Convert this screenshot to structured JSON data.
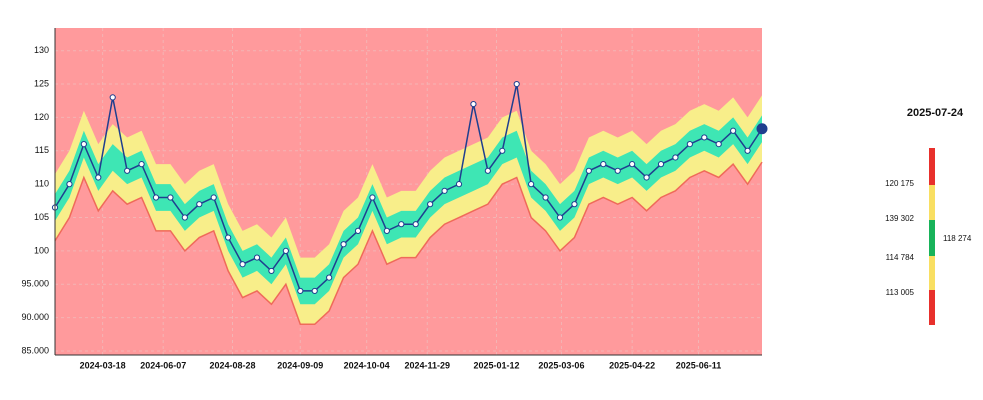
{
  "chart_data": {
    "type": "band-line",
    "values": [
      106.5,
      110,
      116,
      111,
      123,
      112,
      113,
      108,
      108,
      105,
      107,
      108,
      102,
      98,
      99,
      97,
      100,
      94,
      94,
      96,
      101,
      103,
      108,
      103,
      104,
      104,
      107,
      109,
      110,
      122,
      112,
      115,
      125,
      110,
      108,
      105,
      107,
      112,
      113,
      112,
      113,
      111,
      113,
      114,
      116,
      117,
      116,
      118,
      115,
      118.3
    ],
    "color": "#1f3f8f",
    "background": "#ff9a9c",
    "bands": [
      {
        "color": "#f8ee8a",
        "high": [
          111.5,
          115,
          121,
          116,
          119,
          117,
          118,
          113,
          113,
          110,
          112,
          113,
          107,
          103,
          104,
          102,
          105,
          99,
          99,
          101,
          106,
          108,
          113,
          108,
          109,
          109,
          112,
          114,
          115,
          116,
          117,
          120,
          121,
          115,
          113,
          110,
          112,
          117,
          118,
          117,
          118,
          116,
          118,
          119,
          121,
          122,
          121,
          123,
          120,
          123.3
        ],
        "low": [
          101.5,
          105,
          111,
          106,
          109,
          107,
          108,
          103,
          103,
          100,
          102,
          103,
          97,
          93,
          94,
          92,
          95,
          89,
          89,
          91,
          96,
          98,
          103,
          98,
          99,
          99,
          102,
          104,
          105,
          106,
          107,
          110,
          111,
          105,
          103,
          100,
          102,
          107,
          108,
          107,
          108,
          106,
          108,
          109,
          111,
          112,
          111,
          113,
          110,
          113.3
        ]
      },
      {
        "color": "#3ee6b4",
        "high": [
          108.5,
          112,
          118,
          113,
          116,
          114,
          115,
          110,
          110,
          107,
          109,
          110,
          104,
          100,
          101,
          99,
          102,
          96,
          96,
          98,
          103,
          105,
          110,
          105,
          106,
          106,
          109,
          111,
          112,
          113,
          114,
          117,
          118,
          112,
          110,
          107,
          109,
          114,
          115,
          114,
          115,
          113,
          115,
          116,
          118,
          119,
          118,
          120,
          117,
          120.3
        ],
        "low": [
          104.5,
          108,
          114,
          109,
          112,
          110,
          111,
          106,
          106,
          103,
          105,
          106,
          100,
          96,
          97,
          95,
          98,
          92,
          92,
          94,
          99,
          101,
          106,
          101,
          102,
          102,
          105,
          107,
          108,
          109,
          110,
          113,
          114,
          108,
          106,
          103,
          105,
          110,
          111,
          110,
          111,
          109,
          111,
          112,
          114,
          115,
          114,
          116,
          113,
          116.3
        ]
      }
    ],
    "xlim": [
      0,
      49
    ],
    "xticks": [
      {
        "value": 3.3,
        "label": "2024-03-18"
      },
      {
        "value": 7.5,
        "label": "2024-06-07"
      },
      {
        "value": 12.3,
        "label": "2024-08-28"
      },
      {
        "value": 17,
        "label": "2024-09-09"
      },
      {
        "value": 21.6,
        "label": "2024-10-04"
      },
      {
        "value": 25.8,
        "label": "2024-11-29"
      },
      {
        "value": 30.6,
        "label": "2025-01-12"
      },
      {
        "value": 35.1,
        "label": "2025-03-06"
      },
      {
        "value": 40,
        "label": "2025-04-22"
      },
      {
        "value": 44.6,
        "label": "2025-06-11"
      }
    ],
    "ylim": [
      84.4,
      133.4
    ],
    "yticks": [
      130,
      125,
      120,
      115,
      110,
      105,
      100,
      {
        "value": 95,
        "label": "95.000"
      },
      {
        "value": 90,
        "label": "90.000"
      },
      {
        "value": 85,
        "label": "85.000"
      }
    ],
    "grid": true
  },
  "panel": {
    "date": "2025-07-24",
    "levels": [
      "120 175",
      "139 302",
      "114 784",
      "113 005"
    ],
    "current": "118 274"
  }
}
